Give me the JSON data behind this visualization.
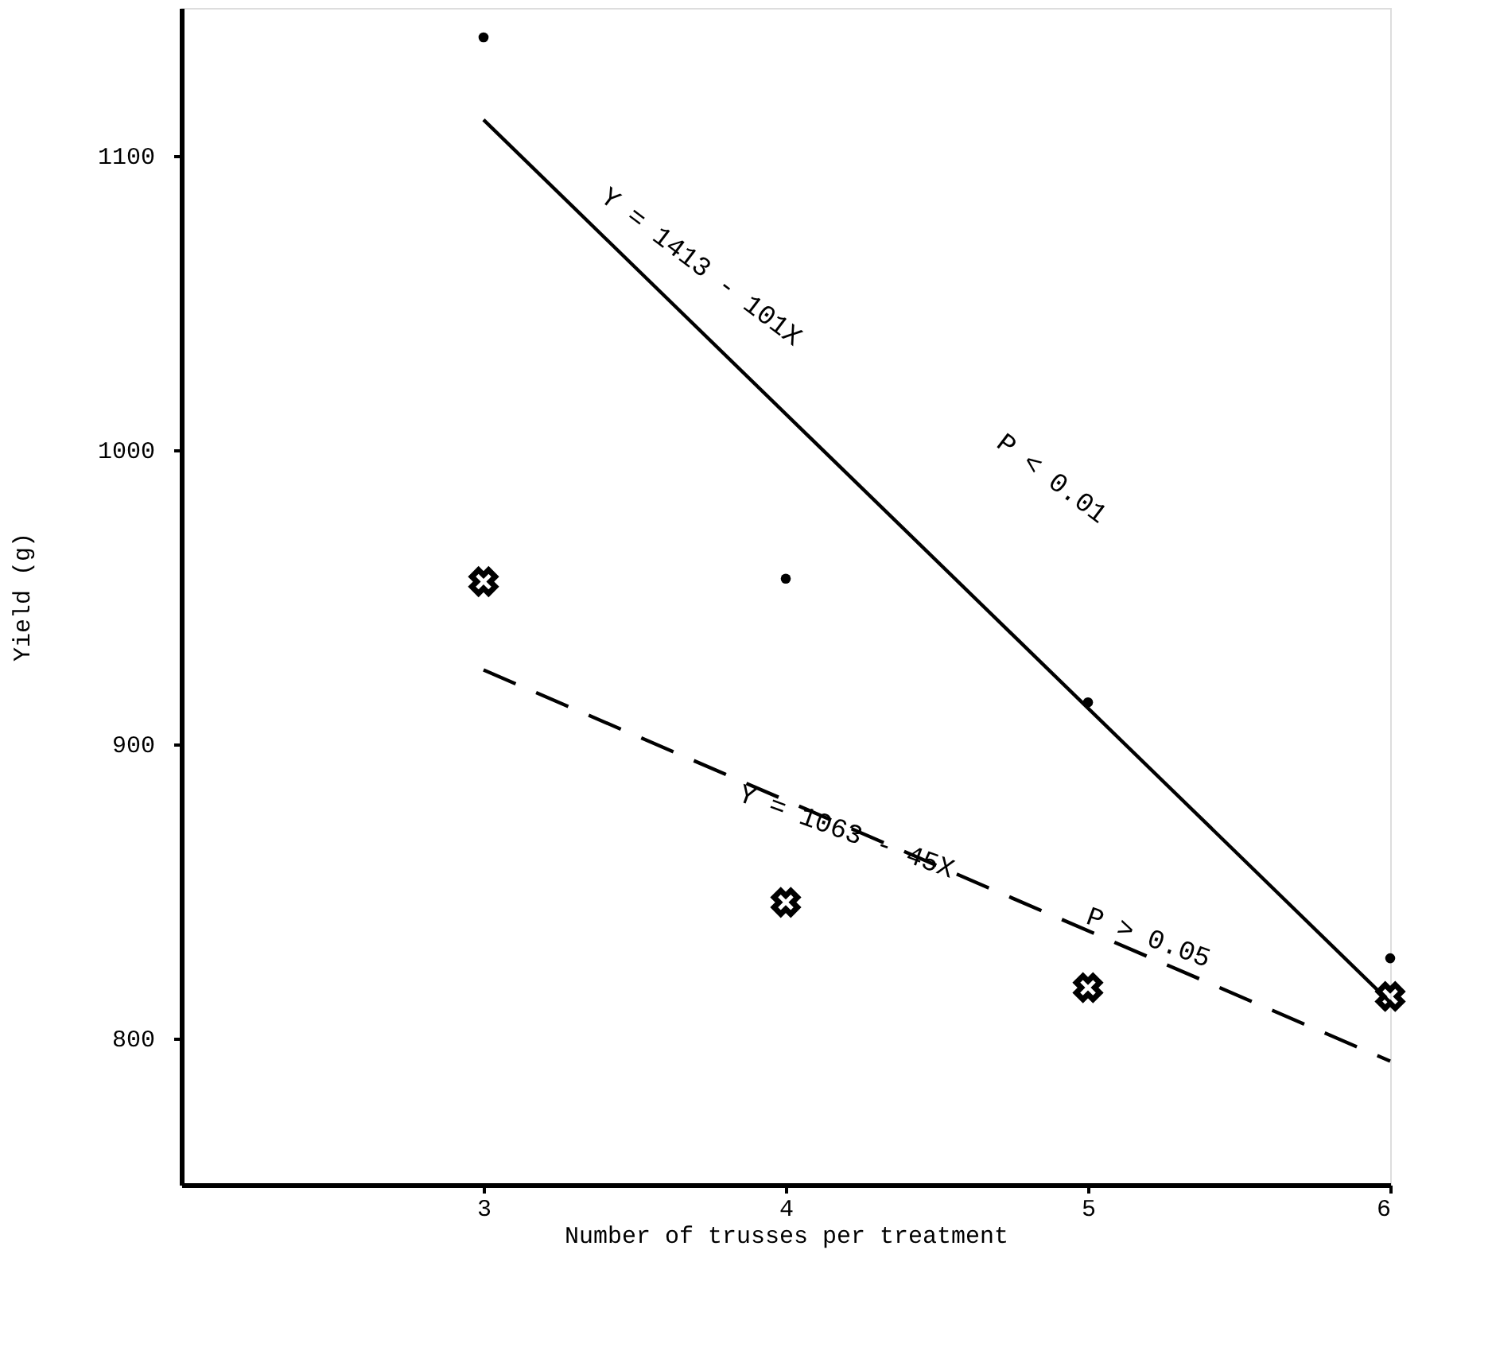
{
  "chart_data": {
    "type": "scatter",
    "xlabel": "Number of trusses per treatment",
    "ylabel": "Yield (g)",
    "xlim": [
      2,
      6
    ],
    "xticks": [
      3,
      4,
      5,
      6
    ],
    "ylim": [
      750,
      1150
    ],
    "yticks": [
      800,
      900,
      1000,
      1100
    ],
    "grid": false,
    "series": [
      {
        "marker": "circle",
        "color": "#000000",
        "x": [
          3,
          4,
          5,
          6
        ],
        "values": [
          1140,
          956,
          914,
          827
        ]
      },
      {
        "marker": "cross",
        "color": "#000000",
        "x": [
          3,
          4,
          5,
          6
        ],
        "values": [
          955,
          846,
          817,
          814
        ]
      },
      {
        "type": "line",
        "marker": "none",
        "line_style": "solid",
        "color": "#000000",
        "x": [
          3,
          6
        ],
        "values": [
          1112,
          812
        ]
      },
      {
        "type": "line",
        "marker": "none",
        "line_style": "dashed",
        "color": "#000000",
        "x": [
          3,
          6
        ],
        "values": [
          925,
          792
        ]
      }
    ],
    "annotations": [
      "Y = 1413 - 101X",
      "P < 0.01",
      "Y = 1063 - 45X",
      "P > 0.05"
    ]
  }
}
